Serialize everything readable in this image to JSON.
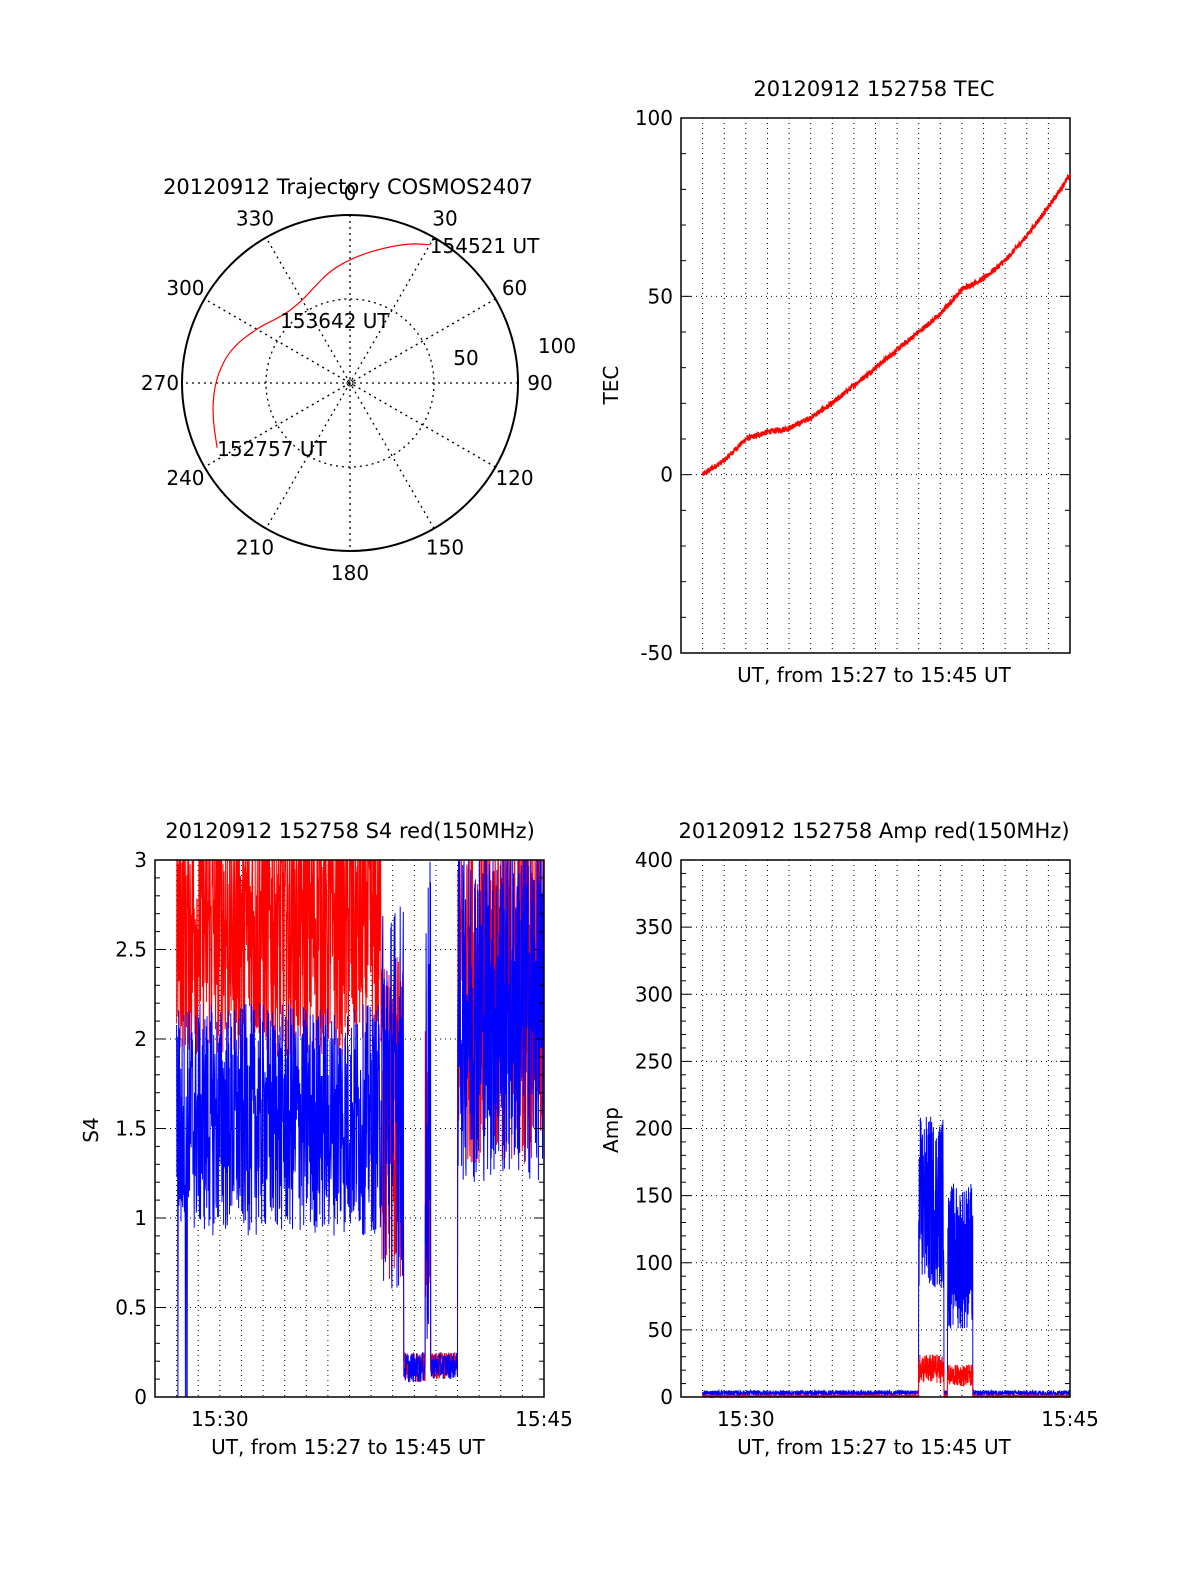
{
  "colors": {
    "red": "#ff0000",
    "blue": "#0000ff",
    "axis": "#000000",
    "grid": "#000000"
  },
  "chart_data": [
    {
      "type": "polar-trajectory",
      "title": "20120912 Trajectory COSMOS2407",
      "angle_ticks": [
        "0",
        "30",
        "60",
        "90",
        "120",
        "150",
        "180",
        "210",
        "240",
        "270",
        "300",
        "330"
      ],
      "radius_ticks": [
        "50",
        "100"
      ],
      "radius_max": 100,
      "trajectory": {
        "points": [
          {
            "azimuth": 244,
            "zenith": 88
          },
          {
            "azimuth": 258,
            "zenith": 84
          },
          {
            "azimuth": 272,
            "zenith": 80
          },
          {
            "azimuth": 286,
            "zenith": 74
          },
          {
            "azimuth": 301,
            "zenith": 64
          },
          {
            "azimuth": 314,
            "zenith": 57
          },
          {
            "azimuth": 326,
            "zenith": 56
          },
          {
            "azimuth": 338,
            "zenith": 60
          },
          {
            "azimuth": 350,
            "zenith": 68
          },
          {
            "azimuth": 2,
            "zenith": 75
          },
          {
            "azimuth": 14,
            "zenith": 83
          },
          {
            "azimuth": 24,
            "zenith": 91
          },
          {
            "azimuth": 30,
            "zenith": 95
          }
        ],
        "labels": [
          {
            "text": "152757 UT",
            "azimuth": 244,
            "zenith": 88
          },
          {
            "text": "153642 UT",
            "azimuth": 312,
            "zenith": 56
          },
          {
            "text": "154521 UT",
            "azimuth": 30,
            "zenith": 95
          }
        ]
      }
    },
    {
      "type": "line",
      "title": "20120912 152758 TEC",
      "xlabel": "UT, from 15:27 to 15:45 UT",
      "ylabel": "TEC",
      "xlim": [
        "15:27",
        "15:45"
      ],
      "ylim": [
        -50,
        100
      ],
      "yticks": [
        "100",
        "50",
        "0",
        "-50"
      ],
      "grid": "vertical-dotted-every-minute, horizontal-dotted",
      "series": [
        {
          "color": "red",
          "x": [
            "15:28:00",
            "15:29:00",
            "15:30:00",
            "15:31:00",
            "15:32:00",
            "15:33:00",
            "15:34:00",
            "15:35:00",
            "15:36:00",
            "15:37:00",
            "15:38:00",
            "15:39:00",
            "15:40:00",
            "15:41:00",
            "15:42:00",
            "15:43:00",
            "15:44:00",
            "15:45:00"
          ],
          "y": [
            0,
            4,
            10,
            12,
            13,
            16,
            20,
            25,
            30,
            35,
            40,
            45,
            52,
            55,
            60,
            67,
            75,
            84
          ]
        }
      ]
    },
    {
      "type": "line",
      "title": "20120912 152758 S4 red(150MHz)",
      "xlabel": "UT, from 15:27 to 15:45 UT",
      "ylabel": "S4",
      "xlim": [
        "15:27",
        "15:45"
      ],
      "ylim": [
        0,
        3
      ],
      "xticks": [
        "15:30",
        "15:45"
      ],
      "yticks": [
        "3",
        "2.5",
        "2",
        "1.5",
        "1",
        "0.5",
        "0"
      ],
      "grid": "dotted",
      "series": [
        {
          "color": "red",
          "approx": "2.0-3.0 before 15:37, dips to about 0.1-0.2 near 15:39-15:40, 1.8-3.0 after 15:41"
        },
        {
          "color": "blue",
          "approx": "1.0-2.0 before 15:37, about 0.15-0.2 near 15:39-15:40, 1.4-3.0 after 15:41"
        }
      ]
    },
    {
      "type": "line",
      "title": "20120912 152758 Amp red(150MHz)",
      "xlabel": "UT, from 15:27 to 15:45 UT",
      "ylabel": "Amp",
      "xlim": [
        "15:27",
        "15:45"
      ],
      "ylim": [
        0,
        400
      ],
      "xticks": [
        "15:30",
        "15:45"
      ],
      "yticks": [
        "400",
        "350",
        "300",
        "250",
        "200",
        "150",
        "100",
        "50",
        "0"
      ],
      "grid": "dotted",
      "series": [
        {
          "color": "blue",
          "approx": "about 3 baseline; burst 80-220 between 15:38 and 15:40 with a gap near 15:39"
        },
        {
          "color": "red",
          "approx": "about 1 baseline; 10-35 during 15:38-15:40"
        }
      ]
    }
  ]
}
